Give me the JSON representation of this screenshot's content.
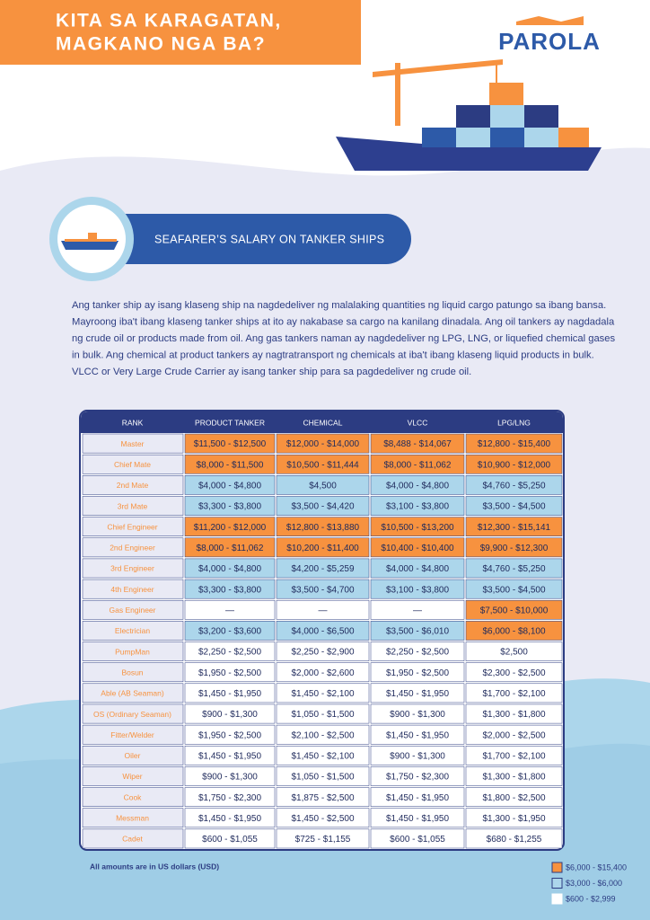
{
  "header": {
    "title_lines": [
      "KITA SA KARAGATAN,",
      "MAGKANO NGA BA?"
    ],
    "logo": "PAROLA"
  },
  "section": {
    "title": "SEAFARER’S SALARY ON TANKER SHIPS"
  },
  "intro_lines": [
    "Ang tanker ship ay isang klaseng ship na nagdedeliver ng malalaking quantities ng liquid cargo patungo sa ibang bansa.",
    "Mayroong iba't ibang klaseng tanker ships at ito ay nakabase sa cargo na kanilang dinadala. Ang oil tankers ay nagdadala",
    "ng crude oil or products made from oil. Ang gas tankers naman ay nagdedeliver ng LPG, LNG, or liquefied chemical gases",
    "in bulk. Ang chemical at product tankers ay nagtratransport ng chemicals at iba't ibang klaseng liquid products in bulk.",
    "VLCC or Very Large Crude Carrier ay isang tanker ship para sa pagdedeliver ng crude oil."
  ],
  "table": {
    "headers": [
      "RANK",
      "PRODUCT TANKER",
      "CHEMICAL",
      "VLCC",
      "LPG/LNG"
    ],
    "rows": [
      {
        "rank": "Master",
        "cells": [
          {
            "text": "$11,500 - $12,500",
            "tier": 0
          },
          {
            "text": "$12,000 - $14,000",
            "tier": 0
          },
          {
            "text": "$8,488 - $14,067",
            "tier": 0
          },
          {
            "text": "$12,800 - $15,400",
            "tier": 0
          }
        ]
      },
      {
        "rank": "Chief Mate",
        "cells": [
          {
            "text": "$8,000 - $11,500",
            "tier": 0
          },
          {
            "text": "$10,500 - $11,444",
            "tier": 0
          },
          {
            "text": "$8,000 - $11,062",
            "tier": 0
          },
          {
            "text": "$10,900 - $12,000",
            "tier": 0
          }
        ]
      },
      {
        "rank": "2nd Mate",
        "cells": [
          {
            "text": "$4,000 - $4,800",
            "tier": 1
          },
          {
            "text": "$4,500",
            "tier": 1
          },
          {
            "text": "$4,000 - $4,800",
            "tier": 1
          },
          {
            "text": "$4,760 - $5,250",
            "tier": 1
          }
        ]
      },
      {
        "rank": "3rd Mate",
        "cells": [
          {
            "text": "$3,300 - $3,800",
            "tier": 1
          },
          {
            "text": "$3,500 - $4,420",
            "tier": 1
          },
          {
            "text": "$3,100 - $3,800",
            "tier": 1
          },
          {
            "text": "$3,500 - $4,500",
            "tier": 1
          }
        ]
      },
      {
        "rank": "Chief Engineer",
        "cells": [
          {
            "text": "$11,200 - $12,000",
            "tier": 0
          },
          {
            "text": "$12,800 - $13,880",
            "tier": 0
          },
          {
            "text": "$10,500 - $13,200",
            "tier": 0
          },
          {
            "text": "$12,300 - $15,141",
            "tier": 0
          }
        ]
      },
      {
        "rank": "2nd Engineer",
        "cells": [
          {
            "text": "$8,000 - $11,062",
            "tier": 0
          },
          {
            "text": "$10,200 - $11,400",
            "tier": 0
          },
          {
            "text": "$10,400 - $10,400",
            "tier": 0
          },
          {
            "text": "$9,900 - $12,300",
            "tier": 0
          }
        ]
      },
      {
        "rank": "3rd Engineer",
        "cells": [
          {
            "text": "$4,000 - $4,800",
            "tier": 1
          },
          {
            "text": "$4,200 - $5,259",
            "tier": 1
          },
          {
            "text": "$4,000 - $4,800",
            "tier": 1
          },
          {
            "text": "$4,760 - $5,250",
            "tier": 1
          }
        ]
      },
      {
        "rank": "4th Engineer",
        "cells": [
          {
            "text": "$3,300 - $3,800",
            "tier": 1
          },
          {
            "text": "$3,500 - $4,700",
            "tier": 1
          },
          {
            "text": "$3,100 - $3,800",
            "tier": 1
          },
          {
            "text": "$3,500 - $4,500",
            "tier": 1
          }
        ]
      },
      {
        "rank": "Gas Engineer",
        "cells": [
          {
            "text": "—",
            "tier": 2
          },
          {
            "text": "—",
            "tier": 2
          },
          {
            "text": "—",
            "tier": 2
          },
          {
            "text": "$7,500 - $10,000",
            "tier": 0
          }
        ]
      },
      {
        "rank": "Electrician",
        "cells": [
          {
            "text": "$3,200 - $3,600",
            "tier": 1
          },
          {
            "text": "$4,000 - $6,500",
            "tier": 1
          },
          {
            "text": "$3,500 - $6,010",
            "tier": 1
          },
          {
            "text": "$6,000 - $8,100",
            "tier": 0
          }
        ]
      },
      {
        "rank": "PumpMan",
        "cells": [
          {
            "text": "$2,250 - $2,500",
            "tier": 2
          },
          {
            "text": "$2,250 - $2,900",
            "tier": 2
          },
          {
            "text": "$2,250 - $2,500",
            "tier": 2
          },
          {
            "text": "$2,500",
            "tier": 2
          }
        ]
      },
      {
        "rank": "Bosun",
        "cells": [
          {
            "text": "$1,950 - $2,500",
            "tier": 2
          },
          {
            "text": "$2,000 - $2,600",
            "tier": 2
          },
          {
            "text": "$1,950 - $2,500",
            "tier": 2
          },
          {
            "text": "$2,300 - $2,500",
            "tier": 2
          }
        ]
      },
      {
        "rank": "Able (AB Seaman)",
        "cells": [
          {
            "text": "$1,450 - $1,950",
            "tier": 2
          },
          {
            "text": "$1,450 - $2,100",
            "tier": 2
          },
          {
            "text": "$1,450 - $1,950",
            "tier": 2
          },
          {
            "text": "$1,700 - $2,100",
            "tier": 2
          }
        ]
      },
      {
        "rank": "OS (Ordinary Seaman)",
        "cells": [
          {
            "text": "$900 - $1,300",
            "tier": 2
          },
          {
            "text": "$1,050 - $1,500",
            "tier": 2
          },
          {
            "text": "$900 - $1,300",
            "tier": 2
          },
          {
            "text": "$1,300 - $1,800",
            "tier": 2
          }
        ]
      },
      {
        "rank": "Fitter/Welder",
        "cells": [
          {
            "text": "$1,950 - $2,500",
            "tier": 2
          },
          {
            "text": "$2,100 - $2,500",
            "tier": 2
          },
          {
            "text": "$1,450 - $1,950",
            "tier": 2
          },
          {
            "text": "$2,000 - $2,500",
            "tier": 2
          }
        ]
      },
      {
        "rank": "Oiler",
        "cells": [
          {
            "text": "$1,450 - $1,950",
            "tier": 2
          },
          {
            "text": "$1,450 - $2,100",
            "tier": 2
          },
          {
            "text": "$900 - $1,300",
            "tier": 2
          },
          {
            "text": "$1,700 - $2,100",
            "tier": 2
          }
        ]
      },
      {
        "rank": "Wiper",
        "cells": [
          {
            "text": "$900 - $1,300",
            "tier": 2
          },
          {
            "text": "$1,050 - $1,500",
            "tier": 2
          },
          {
            "text": "$1,750 - $2,300",
            "tier": 2
          },
          {
            "text": "$1,300 - $1,800",
            "tier": 2
          }
        ]
      },
      {
        "rank": "Cook",
        "cells": [
          {
            "text": "$1,750 - $2,300",
            "tier": 2
          },
          {
            "text": "$1,875 - $2,500",
            "tier": 2
          },
          {
            "text": "$1,450 - $1,950",
            "tier": 2
          },
          {
            "text": "$1,800 - $2,500",
            "tier": 2
          }
        ]
      },
      {
        "rank": "Messman",
        "cells": [
          {
            "text": "$1,450 - $1,950",
            "tier": 2
          },
          {
            "text": "$1,450 - $2,500",
            "tier": 2
          },
          {
            "text": "$1,450 - $1,950",
            "tier": 2
          },
          {
            "text": "$1,300 - $1,950",
            "tier": 2
          }
        ]
      },
      {
        "rank": "Cadet",
        "cells": [
          {
            "text": "$600 - $1,055",
            "tier": 2
          },
          {
            "text": "$725 - $1,155",
            "tier": 2
          },
          {
            "text": "$600 - $1,055",
            "tier": 2
          },
          {
            "text": "$680 - $1,255",
            "tier": 2
          }
        ]
      }
    ]
  },
  "footnote": "All amounts are in US dollars (USD)",
  "legend": [
    {
      "label": "$6,000 - $15,400",
      "color": "#f7923f"
    },
    {
      "label": "$3,000 - $6,000",
      "color": "#acd6eb"
    },
    {
      "label": "$600 - $2,999",
      "color": "#ffffff"
    }
  ]
}
